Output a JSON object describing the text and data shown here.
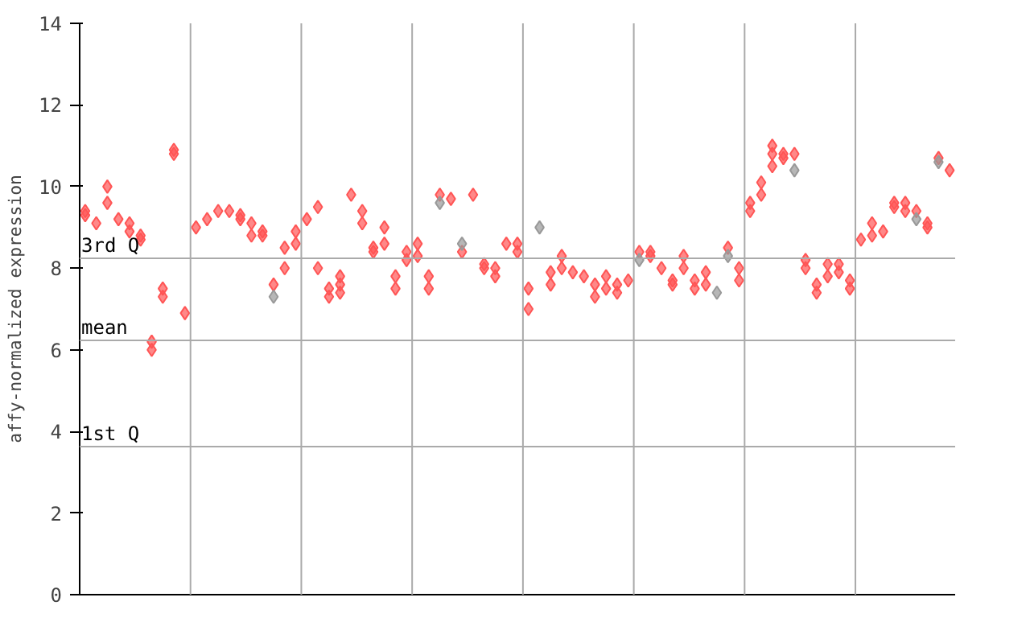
{
  "chart_data": {
    "type": "scatter",
    "ylabel": "affy-normalized expression",
    "categories": [
      null,
      null,
      null,
      null,
      null,
      null,
      null,
      null,
      null,
      null,
      null,
      null,
      null,
      null,
      null,
      null,
      null,
      null,
      null,
      null,
      null,
      null,
      null,
      null,
      null,
      null,
      null,
      null,
      null,
      null,
      null,
      null,
      null,
      null,
      null,
      null,
      null,
      null,
      null,
      null,
      null,
      null,
      null,
      null,
      null,
      null,
      null,
      null,
      null,
      null,
      null,
      null,
      null,
      null,
      null,
      null,
      null,
      null,
      null,
      null,
      null,
      null,
      null,
      null,
      null,
      null,
      null,
      null,
      null,
      null,
      null,
      null,
      null,
      null,
      null,
      null,
      null,
      null,
      null
    ],
    "ylim": [
      0,
      14
    ],
    "yticks": [
      0,
      2,
      4,
      6,
      8,
      10,
      12,
      14
    ],
    "tick_labels": "y",
    "marker": "diamond",
    "series": [
      {
        "color": "#ff5555",
        "values": [
          9.4,
          9.1,
          10.0,
          9.2,
          9.1,
          8.8,
          6.2,
          7.5,
          10.9,
          6.9,
          9.0,
          9.2,
          9.4,
          9.4,
          9.3,
          9.1,
          8.9,
          7.6,
          8.5,
          8.9,
          9.2,
          9.5,
          7.5,
          7.8,
          9.8,
          9.4,
          8.5,
          9.0,
          7.8,
          8.4,
          8.6,
          7.8,
          9.8,
          9.7,
          8.4,
          9.8,
          8.1,
          8.0,
          8.6,
          8.6,
          7.5,
          null,
          7.9,
          8.3,
          7.9,
          7.8,
          7.6,
          7.8,
          7.6,
          7.7,
          8.4,
          8.4,
          8.0,
          7.7,
          8.3,
          7.7,
          7.9,
          null,
          8.5,
          8.0,
          9.6,
          10.1,
          11.0,
          10.8,
          10.8,
          8.2,
          7.6,
          8.1,
          8.1,
          7.7,
          8.7,
          9.1,
          8.9,
          9.6,
          9.6,
          9.4,
          9.1,
          10.7,
          10.4
        ]
      },
      {
        "color": "#ff5555",
        "values": [
          9.3,
          null,
          9.6,
          null,
          8.9,
          8.7,
          6.0,
          7.3,
          10.8,
          null,
          null,
          null,
          null,
          null,
          9.2,
          8.8,
          8.8,
          null,
          8.0,
          8.6,
          null,
          8.0,
          7.3,
          7.6,
          null,
          9.1,
          8.4,
          8.6,
          7.5,
          8.2,
          8.3,
          7.5,
          null,
          null,
          null,
          null,
          8.0,
          7.8,
          null,
          8.4,
          7.0,
          null,
          7.6,
          8.0,
          null,
          null,
          7.3,
          7.5,
          7.4,
          null,
          null,
          8.3,
          null,
          7.6,
          8.0,
          7.5,
          7.6,
          null,
          null,
          7.7,
          9.4,
          9.8,
          10.8,
          10.7,
          null,
          8.0,
          7.4,
          7.8,
          7.9,
          7.5,
          null,
          8.8,
          null,
          9.5,
          9.4,
          null,
          9.0,
          null,
          null
        ]
      },
      {
        "color": "#ff5555",
        "values": [
          null,
          null,
          null,
          null,
          null,
          null,
          null,
          null,
          null,
          null,
          null,
          null,
          null,
          null,
          null,
          null,
          null,
          null,
          null,
          null,
          null,
          null,
          null,
          7.4,
          null,
          null,
          null,
          null,
          null,
          null,
          null,
          null,
          null,
          null,
          null,
          null,
          null,
          null,
          null,
          null,
          null,
          null,
          null,
          null,
          null,
          null,
          null,
          null,
          null,
          null,
          null,
          null,
          null,
          null,
          null,
          null,
          null,
          null,
          null,
          null,
          null,
          null,
          10.5,
          null,
          null,
          null,
          null,
          null,
          null,
          null,
          null,
          null,
          null,
          null,
          null,
          null,
          null,
          null,
          null
        ]
      },
      {
        "color": "#999999",
        "values": [
          null,
          null,
          null,
          null,
          null,
          null,
          null,
          null,
          null,
          null,
          null,
          null,
          null,
          null,
          null,
          null,
          null,
          7.3,
          null,
          null,
          null,
          null,
          null,
          null,
          null,
          null,
          null,
          null,
          null,
          null,
          null,
          null,
          9.6,
          null,
          8.6,
          null,
          null,
          null,
          null,
          null,
          null,
          9.0,
          null,
          null,
          null,
          null,
          null,
          null,
          null,
          null,
          8.2,
          null,
          null,
          null,
          null,
          null,
          null,
          7.4,
          8.3,
          null,
          null,
          null,
          null,
          null,
          10.4,
          null,
          null,
          null,
          null,
          null,
          null,
          null,
          null,
          null,
          null,
          9.2,
          null,
          10.6,
          null
        ]
      }
    ],
    "ref_lines": [
      {
        "axis": "y",
        "value": 8.24,
        "label": "3rd Q",
        "color": "#aaaaaa"
      },
      {
        "axis": "y",
        "value": 6.23,
        "label": "mean",
        "color": "#aaaaaa"
      },
      {
        "axis": "y",
        "value": 3.63,
        "label": "1st Q",
        "color": "#aaaaaa"
      }
    ]
  }
}
